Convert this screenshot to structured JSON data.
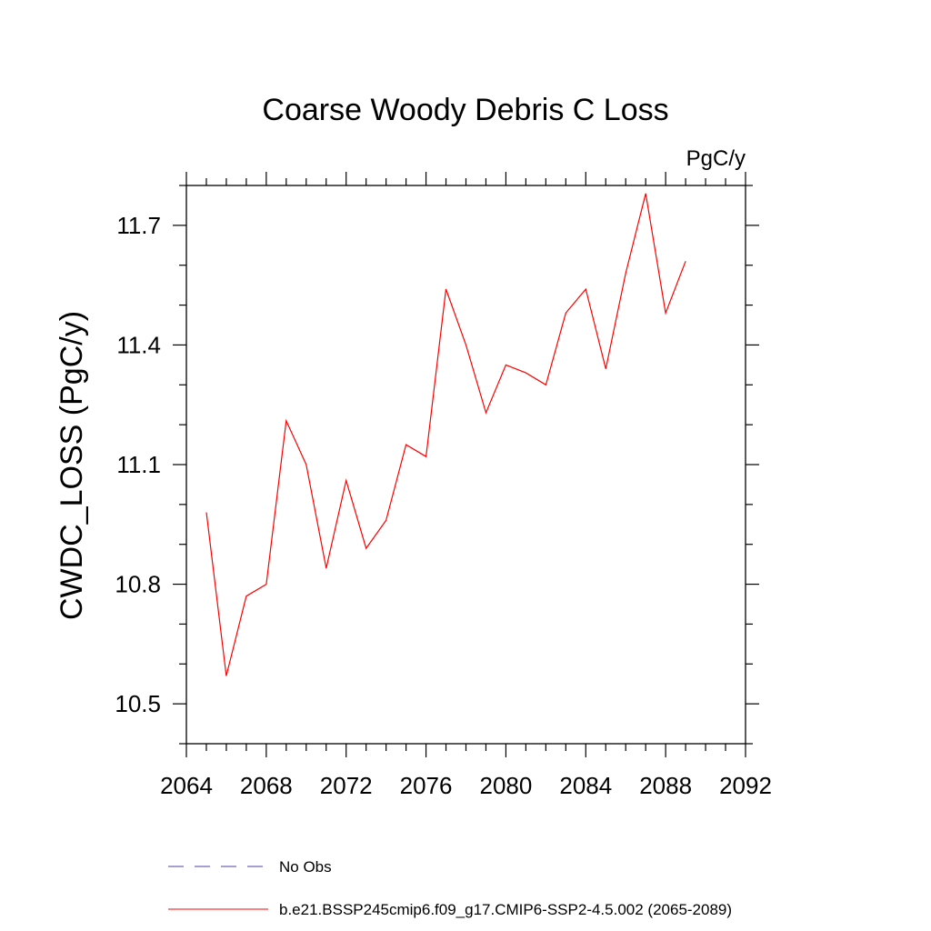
{
  "chart_data": {
    "type": "line",
    "title": "Coarse Woody Debris C Loss",
    "units_label": "PgC/y",
    "ylabel": "CWDC_LOSS  (PgC/y)",
    "xlim": [
      2064,
      2092
    ],
    "ylim": [
      10.4,
      11.8
    ],
    "x_ticks": [
      2064,
      2068,
      2072,
      2076,
      2080,
      2084,
      2088,
      2092
    ],
    "x_tick_labels": [
      "2064",
      "2068",
      "2072",
      "2076",
      "2080",
      "2084",
      "2088",
      "2092"
    ],
    "y_ticks": [
      10.5,
      10.8,
      11.1,
      11.4,
      11.7
    ],
    "y_tick_labels": [
      "10.5",
      "10.8",
      "11.1",
      "11.4",
      "11.7"
    ],
    "grid": false,
    "legend_position": "bottom",
    "series": [
      {
        "name": "No Obs",
        "color": "#4b3fa8",
        "dash": true,
        "x": [],
        "y": []
      },
      {
        "name": "b.e21.BSSP245cmip6.f09_g17.CMIP6-SSP2-4.5.002 (2065-2089)",
        "color": "#ff0000",
        "dash": false,
        "x": [
          2065,
          2066,
          2067,
          2068,
          2069,
          2070,
          2071,
          2072,
          2073,
          2074,
          2075,
          2076,
          2077,
          2078,
          2079,
          2080,
          2081,
          2082,
          2083,
          2084,
          2085,
          2086,
          2087,
          2088,
          2089
        ],
        "y": [
          10.98,
          10.57,
          10.77,
          10.8,
          11.21,
          11.1,
          10.84,
          11.06,
          10.89,
          10.96,
          11.15,
          11.12,
          11.54,
          11.4,
          11.23,
          11.35,
          11.33,
          11.3,
          11.48,
          11.54,
          11.34,
          11.58,
          11.78,
          11.48,
          11.61
        ]
      }
    ]
  }
}
